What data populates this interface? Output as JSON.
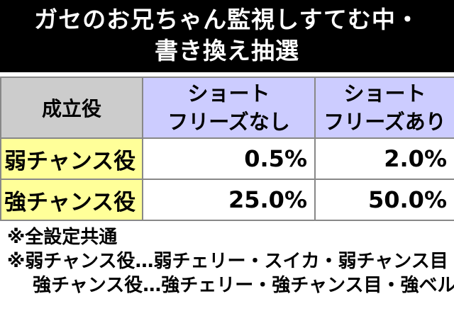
{
  "header": {
    "title": "ガセのお兄ちゃん監視しすてむ中・\n書き換え抽選"
  },
  "table": {
    "header": [
      "成立役",
      "ショート\nフリーズなし",
      "ショート\nフリーズあり"
    ],
    "rows": [
      [
        "弱チャンス役",
        "0.5%",
        "2.0%"
      ],
      [
        "強チャンス役",
        "25.0%",
        "50.0%"
      ]
    ]
  },
  "notes": [
    "※全設定共通",
    "※弱チャンス役…弱チェリー・スイカ・弱チャンス目",
    "強チャンス役…強チェリー・強チャンス目・強ベル"
  ]
}
